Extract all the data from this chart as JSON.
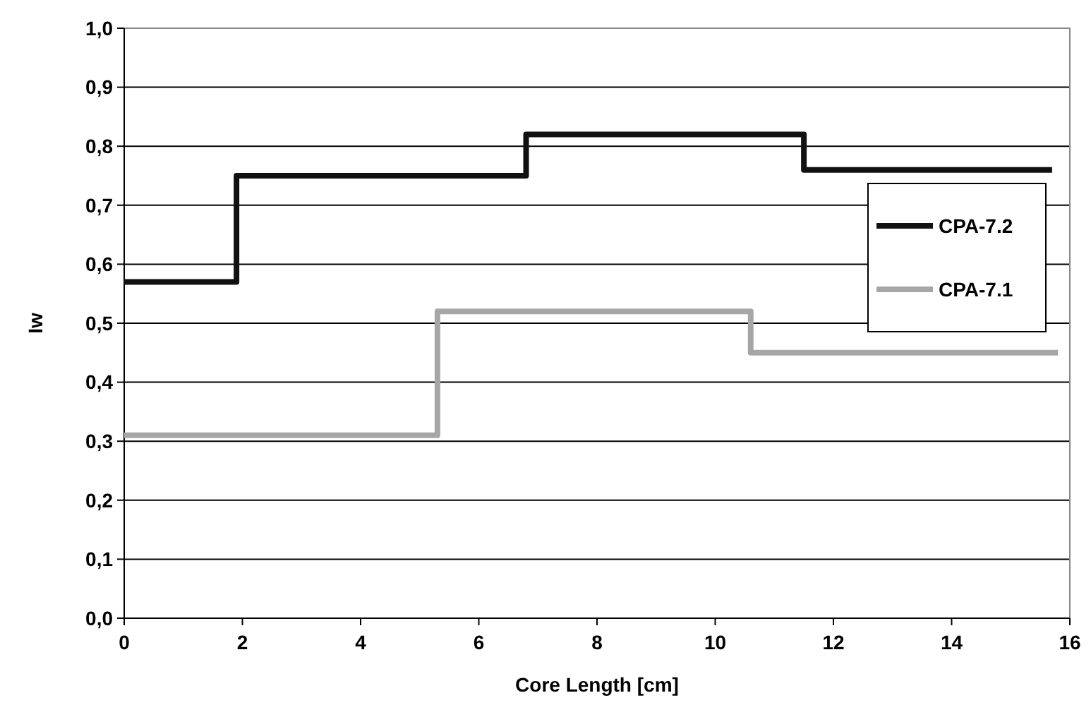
{
  "chart_data": {
    "type": "step",
    "xlabel": "Core Length [cm]",
    "ylabel": "Iw",
    "xlim": [
      0,
      16
    ],
    "xticks": [
      0,
      2,
      4,
      6,
      8,
      10,
      12,
      14,
      16
    ],
    "ylim": [
      0,
      1
    ],
    "yticks": [
      {
        "value": 0,
        "label": "0,0"
      },
      {
        "value": 0.1,
        "label": "0,1"
      },
      {
        "value": 0.2,
        "label": "0,2"
      },
      {
        "value": 0.3,
        "label": "0,3"
      },
      {
        "value": 0.4,
        "label": "0,4"
      },
      {
        "value": 0.5,
        "label": "0,5"
      },
      {
        "value": 0.6,
        "label": "0,6"
      },
      {
        "value": 0.7,
        "label": "0,7"
      },
      {
        "value": 0.8,
        "label": "0,8"
      },
      {
        "value": 0.9,
        "label": "0,9"
      },
      {
        "value": 1,
        "label": "1,0"
      }
    ],
    "grid": "y",
    "legend": "right",
    "series": [
      {
        "name": "CPA-7.2",
        "color": "#111111",
        "x": [
          0,
          1.9,
          6.8,
          11.5,
          15.7
        ],
        "values": [
          0.57,
          0.75,
          0.82,
          0.76,
          0.76
        ]
      },
      {
        "name": "CPA-7.1",
        "color": "#a6a6a6",
        "x": [
          0,
          5.3,
          10.6,
          15.8
        ],
        "values": [
          0.31,
          0.52,
          0.45,
          0.45
        ]
      }
    ]
  }
}
